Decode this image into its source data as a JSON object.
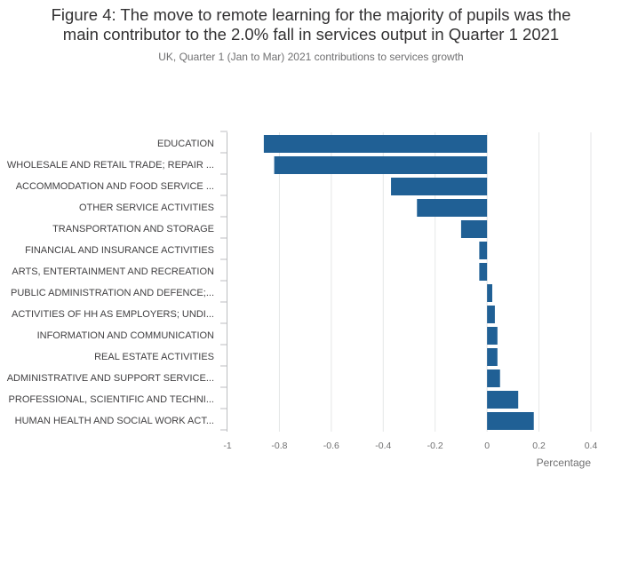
{
  "title": {
    "line1": "Figure 4: The move to remote learning for the majority of pupils was the",
    "line2": "main contributor to the 2.0% fall in services output in Quarter 1 2021"
  },
  "subtitle": "UK, Quarter 1 (Jan to Mar) 2021 contributions to services growth",
  "colors": {
    "bar": "#206095",
    "grid": "#e5e6e7",
    "axis": "#bcbec0"
  },
  "chart_data": {
    "type": "bar",
    "orientation": "horizontal",
    "title": "Figure 4: The move to remote learning for the majority of pupils was the main contributor to the 2.0% fall in services output in Quarter 1 2021",
    "subtitle": "UK, Quarter 1 (Jan to Mar) 2021 contributions to services growth",
    "xlabel": "Percentage",
    "ylabel": "",
    "xlim": [
      -1,
      0.4
    ],
    "xticks": [
      -1,
      -0.8,
      -0.6,
      -0.4,
      -0.2,
      0,
      0.2,
      0.4
    ],
    "xtick_labels": [
      "-1",
      "-0.8",
      "-0.6",
      "-0.4",
      "-0.2",
      "0",
      "0.2",
      "0.4"
    ],
    "grid": true,
    "categories": [
      "EDUCATION",
      "WHOLESALE AND RETAIL TRADE; REPAIR ...",
      "ACCOMMODATION AND FOOD SERVICE ...",
      "OTHER SERVICE ACTIVITIES",
      "TRANSPORTATION AND STORAGE",
      "FINANCIAL AND INSURANCE ACTIVITIES",
      "ARTS, ENTERTAINMENT AND RECREATION",
      "PUBLIC ADMINISTRATION AND DEFENCE;...",
      "ACTIVITIES OF HH AS EMPLOYERS; UNDI...",
      "INFORMATION AND COMMUNICATION",
      "REAL ESTATE ACTIVITIES",
      "ADMINISTRATIVE AND SUPPORT SERVICE...",
      "PROFESSIONAL, SCIENTIFIC AND TECHNI...",
      "HUMAN HEALTH AND SOCIAL WORK ACT..."
    ],
    "values": [
      -0.86,
      -0.82,
      -0.37,
      -0.27,
      -0.1,
      -0.03,
      -0.03,
      0.02,
      0.03,
      0.04,
      0.04,
      0.05,
      0.12,
      0.18
    ]
  }
}
